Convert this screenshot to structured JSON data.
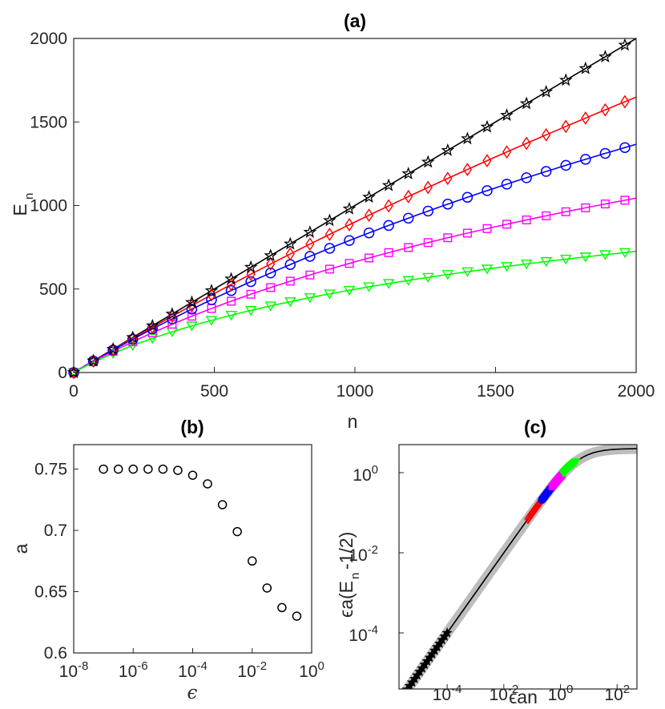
{
  "chart_data": [
    {
      "id": "a",
      "type": "line",
      "title": "(a)",
      "xlabel": "n",
      "ylabel": "E",
      "ylabel_sub": "n",
      "xlim": [
        0,
        2000
      ],
      "ylim": [
        0,
        2000
      ],
      "xticks": [
        "0",
        "500",
        "1000",
        "1500",
        "2000"
      ],
      "yticks": [
        "0",
        "500",
        "1000",
        "1500",
        "2000"
      ],
      "marker_n": [
        0,
        70,
        140,
        210,
        280,
        350,
        420,
        490,
        560,
        630,
        700,
        770,
        840,
        910,
        980,
        1050,
        1120,
        1190,
        1260,
        1330,
        1400,
        1470,
        1540,
        1610,
        1680,
        1750,
        1820,
        1890,
        1960
      ],
      "series": [
        {
          "name": "black",
          "marker": "star",
          "color": "#000000",
          "slope": 1.0,
          "scale": 0
        },
        {
          "name": "red",
          "marker": "diamond",
          "color": "#ff0000",
          "slope": 1.0,
          "scale": 4400
        },
        {
          "name": "blue",
          "marker": "circle",
          "color": "#0000ff",
          "slope": 1.0,
          "scale": 1900
        },
        {
          "name": "magenta",
          "marker": "square",
          "color": "#ff00ff",
          "slope": 0.97,
          "scale": 950
        },
        {
          "name": "green",
          "marker": "triangle-down",
          "color": "#00ff00",
          "slope": 0.93,
          "scale": 470
        }
      ]
    },
    {
      "id": "b",
      "type": "scatter",
      "title": "(b)",
      "xlabel": "ϵ",
      "ylabel": "a",
      "xscale": "log",
      "xlim_exp": [
        -8,
        0
      ],
      "ylim": [
        0.6,
        0.77
      ],
      "xticks": [
        {
          "base": "10",
          "exp": "-8"
        },
        {
          "base": "10",
          "exp": "-6"
        },
        {
          "base": "10",
          "exp": "-4"
        },
        {
          "base": "10",
          "exp": "-2"
        },
        {
          "base": "10",
          "exp": "0"
        }
      ],
      "yticks": [
        "0.6",
        "0.65",
        "0.7",
        "0.75"
      ],
      "points": [
        {
          "log_eps": -7.0,
          "a": 0.75
        },
        {
          "log_eps": -6.5,
          "a": 0.75
        },
        {
          "log_eps": -6.0,
          "a": 0.75
        },
        {
          "log_eps": -5.5,
          "a": 0.75
        },
        {
          "log_eps": -5.0,
          "a": 0.75
        },
        {
          "log_eps": -4.5,
          "a": 0.749
        },
        {
          "log_eps": -4.0,
          "a": 0.745
        },
        {
          "log_eps": -3.5,
          "a": 0.738
        },
        {
          "log_eps": -3.0,
          "a": 0.721
        },
        {
          "log_eps": -2.5,
          "a": 0.699
        },
        {
          "log_eps": -2.0,
          "a": 0.675
        },
        {
          "log_eps": -1.5,
          "a": 0.653
        },
        {
          "log_eps": -1.0,
          "a": 0.637
        },
        {
          "log_eps": -0.5,
          "a": 0.63
        }
      ]
    },
    {
      "id": "c",
      "type": "line",
      "title": "(c)",
      "xlabel": "ϵan",
      "ylabel_prefix": "ϵa(E",
      "ylabel_sub": "n",
      "ylabel_suffix": "-1/2)",
      "xscale": "log",
      "yscale": "log",
      "xlim_exp": [
        -5.7,
        2.7
      ],
      "ylim_exp": [
        -5.4,
        0.7
      ],
      "xticks": [
        {
          "base": "10",
          "exp": "-4"
        },
        {
          "base": "10",
          "exp": "-2"
        },
        {
          "base": "10",
          "exp": "0"
        },
        {
          "base": "10",
          "exp": "2"
        }
      ],
      "yticks": [
        {
          "base": "10",
          "exp": "-4"
        },
        {
          "base": "10",
          "exp": "-2"
        },
        {
          "base": "10",
          "exp": "0"
        }
      ],
      "curve": "y = x / (1 + x / 4)",
      "clusters": [
        {
          "name": "black",
          "marker": "star",
          "color": "#000000",
          "log_x_range": [
            -5.5,
            -4.0
          ]
        },
        {
          "name": "red",
          "marker": "diamond",
          "color": "#ff0000",
          "log_x_range": [
            -1.15,
            -0.6
          ]
        },
        {
          "name": "blue",
          "marker": "circle",
          "color": "#0000ff",
          "log_x_range": [
            -0.65,
            -0.25
          ]
        },
        {
          "name": "magenta",
          "marker": "square",
          "color": "#ff00ff",
          "log_x_range": [
            -0.3,
            0.05
          ]
        },
        {
          "name": "green",
          "marker": "triangle-down",
          "color": "#00ff00",
          "log_x_range": [
            0.1,
            0.55
          ]
        }
      ]
    }
  ]
}
